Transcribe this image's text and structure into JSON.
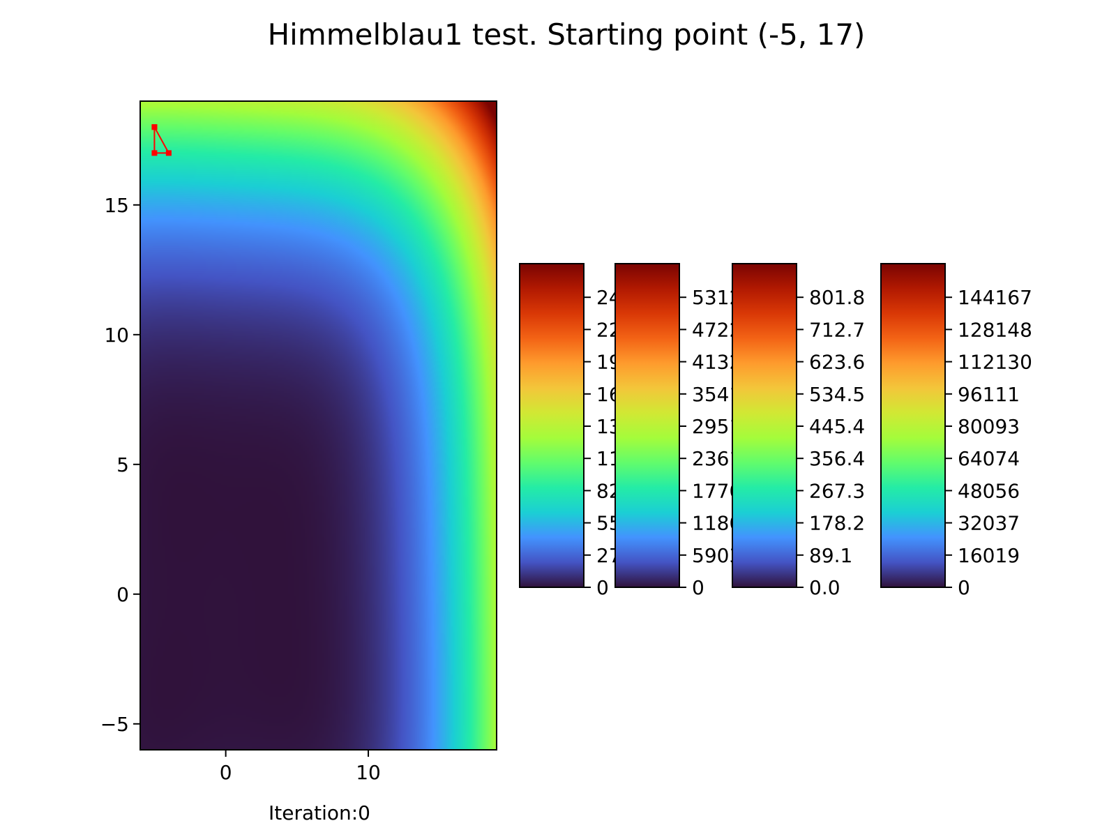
{
  "chart_data": {
    "type": "heatmap",
    "title": "Himmelblau1 test. Starting point (-5, 17)",
    "xlabel": "Iteration:0",
    "ylabel": "",
    "xlim": [
      -6,
      19
    ],
    "ylim": [
      -6,
      19
    ],
    "x_ticks": [
      {
        "value": 0,
        "label": "0"
      },
      {
        "value": 10,
        "label": "10"
      }
    ],
    "y_ticks": [
      {
        "value": -5,
        "label": "−5"
      },
      {
        "value": 0,
        "label": "0"
      },
      {
        "value": 5,
        "label": "5"
      },
      {
        "value": 10,
        "label": "10"
      },
      {
        "value": 15,
        "label": "15"
      }
    ],
    "colormap": [
      "#30123b",
      "#4454c4",
      "#4393fe",
      "#1bcfd4",
      "#24eca6",
      "#61fc6c",
      "#a4fc3b",
      "#d1e834",
      "#f3c63a",
      "#fe9b2d",
      "#f36315",
      "#d93806",
      "#b11901",
      "#7a0402"
    ],
    "field": {
      "description_of_function": "Himmelblau",
      "visible_min": 0,
      "visible_max": 255000
    },
    "path": {
      "color": "#ff0000",
      "points": [
        [
          -5,
          18
        ],
        [
          -5,
          17
        ],
        [
          -4,
          17
        ],
        [
          -5,
          18
        ]
      ]
    },
    "colorbars": [
      {
        "ticks": [
          "0",
          "27557",
          "55113",
          "82670",
          "110226",
          "137783",
          "165339",
          "192896",
          "220452",
          "248009"
        ]
      },
      {
        "ticks": [
          "0",
          "59030",
          "118059",
          "177089",
          "236119",
          "295148",
          "354178",
          "413207",
          "472237",
          "531267"
        ]
      },
      {
        "ticks": [
          "0.0",
          "89.1",
          "178.2",
          "267.3",
          "356.4",
          "445.4",
          "534.5",
          "623.6",
          "712.7",
          "801.8"
        ]
      },
      {
        "ticks": [
          "0",
          "16019",
          "32037",
          "48056",
          "64074",
          "80093",
          "96111",
          "112130",
          "128148",
          "144167"
        ]
      }
    ]
  }
}
